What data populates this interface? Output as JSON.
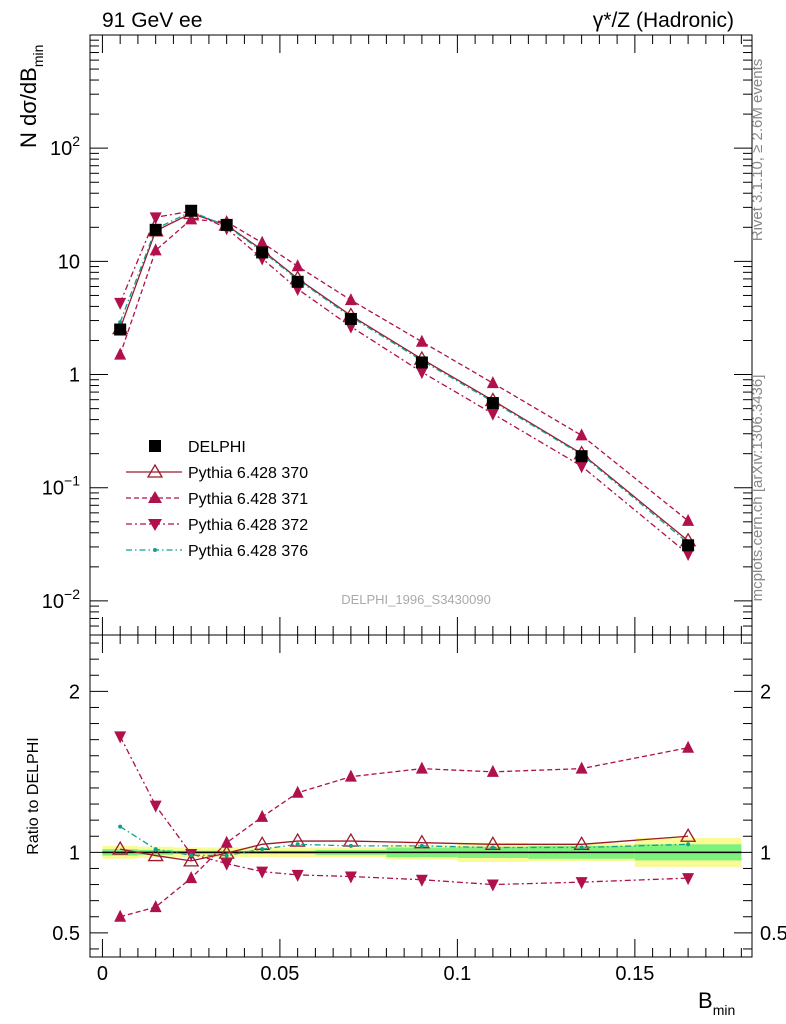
{
  "header": {
    "left": "91 GeV ee",
    "right": "γ*/Z (Hadronic)"
  },
  "side_text": {
    "rivet": "Rivet 3.1.10, ≥ 2.6M events",
    "mcplots": "mcplots.cern.ch [arXiv:1306.3436]"
  },
  "watermark": "DELPHI_1996_S3430090",
  "colors": {
    "data": "#000000",
    "p370": "#9b1b2b",
    "p371": "#b0104c",
    "p372": "#b0104c",
    "p376": "#10a090",
    "band_stat": "#7ef07e",
    "band_total": "#fafa96"
  },
  "chart_data": [
    {
      "type": "scatter",
      "panel": "main",
      "ylabel_main": "N dσ/dB",
      "ylabel_sub": "min",
      "yscale": "log",
      "ylim": [
        0.005,
        1000
      ],
      "xlim": [
        -0.0035,
        0.183
      ],
      "y_ticks": [
        {
          "value": 0.01,
          "mant": "10",
          "exp": "−2"
        },
        {
          "value": 0.1,
          "mant": "10",
          "exp": "−1"
        },
        {
          "value": 1,
          "mant": "1",
          "exp": ""
        },
        {
          "value": 10,
          "mant": "10",
          "exp": ""
        },
        {
          "value": 100,
          "mant": "10",
          "exp": "2"
        }
      ],
      "x": [
        0.005,
        0.015,
        0.025,
        0.035,
        0.045,
        0.055,
        0.07,
        0.09,
        0.11,
        0.135,
        0.165
      ],
      "series": [
        {
          "name": "DELPHI",
          "key": "data",
          "values": [
            2.5,
            19,
            28,
            21,
            12,
            6.6,
            3.1,
            1.28,
            0.56,
            0.19,
            0.031
          ]
        },
        {
          "name": "Pythia 6.428 370",
          "key": "p370",
          "values": [
            2.55,
            18.6,
            26.5,
            20.9,
            12.6,
            7.05,
            3.32,
            1.37,
            0.59,
            0.2,
            0.034
          ]
        },
        {
          "name": "Pythia 6.428 371",
          "key": "p371",
          "values": [
            1.5,
            12.5,
            23.5,
            22.3,
            14.6,
            9.05,
            4.55,
            1.95,
            0.84,
            0.29,
            0.051
          ]
        },
        {
          "name": "Pythia 6.428 372",
          "key": "p372",
          "values": [
            4.3,
            24.5,
            27.8,
            19.6,
            10.6,
            5.7,
            2.65,
            1.05,
            0.45,
            0.155,
            0.026
          ]
        },
        {
          "name": "Pythia 6.428 376",
          "key": "p376",
          "values": [
            2.9,
            19.4,
            27.5,
            20.6,
            12.3,
            6.9,
            3.23,
            1.33,
            0.575,
            0.196,
            0.0325
          ]
        }
      ]
    },
    {
      "type": "line",
      "panel": "ratio",
      "ylabel": "Ratio to DELPHI",
      "ylim": [
        0.35,
        2.35
      ],
      "xlim": [
        -0.0035,
        0.183
      ],
      "y_ticks": [
        0.5,
        1,
        2
      ],
      "y_tick_labels": [
        "0.5",
        "1",
        "2"
      ],
      "x_ticks": [
        0,
        0.05,
        0.1,
        0.15
      ],
      "x_tick_labels": [
        "0",
        "0.05",
        "0.1",
        "0.15"
      ],
      "xlabel_main": "B",
      "xlabel_sub": "min",
      "bins": [
        {
          "lo": 0.0,
          "hi": 0.01,
          "stat": [
            0.98,
            1.02
          ],
          "total": [
            0.96,
            1.04
          ]
        },
        {
          "lo": 0.01,
          "hi": 0.02,
          "stat": [
            0.985,
            1.015
          ],
          "total": [
            0.965,
            1.035
          ]
        },
        {
          "lo": 0.02,
          "hi": 0.03,
          "stat": [
            0.99,
            1.01
          ],
          "total": [
            0.97,
            1.03
          ]
        },
        {
          "lo": 0.03,
          "hi": 0.04,
          "stat": [
            0.99,
            1.01
          ],
          "total": [
            0.97,
            1.03
          ]
        },
        {
          "lo": 0.04,
          "hi": 0.05,
          "stat": [
            0.99,
            1.01
          ],
          "total": [
            0.97,
            1.03
          ]
        },
        {
          "lo": 0.05,
          "hi": 0.06,
          "stat": [
            0.99,
            1.01
          ],
          "total": [
            0.97,
            1.03
          ]
        },
        {
          "lo": 0.06,
          "hi": 0.08,
          "stat": [
            0.985,
            1.015
          ],
          "total": [
            0.97,
            1.03
          ]
        },
        {
          "lo": 0.08,
          "hi": 0.1,
          "stat": [
            0.97,
            1.03
          ],
          "total": [
            0.955,
            1.045
          ]
        },
        {
          "lo": 0.1,
          "hi": 0.12,
          "stat": [
            0.965,
            1.035
          ],
          "total": [
            0.94,
            1.06
          ]
        },
        {
          "lo": 0.12,
          "hi": 0.15,
          "stat": [
            0.96,
            1.04
          ],
          "total": [
            0.945,
            1.055
          ]
        },
        {
          "lo": 0.15,
          "hi": 0.18,
          "stat": [
            0.95,
            1.05
          ],
          "total": [
            0.91,
            1.09
          ]
        }
      ],
      "x": [
        0.005,
        0.015,
        0.025,
        0.035,
        0.045,
        0.055,
        0.07,
        0.09,
        0.11,
        0.135,
        0.165
      ],
      "series": [
        {
          "name": "Pythia 6.428 370",
          "key": "p370",
          "values": [
            1.02,
            0.98,
            0.947,
            0.995,
            1.05,
            1.07,
            1.07,
            1.06,
            1.05,
            1.05,
            1.1
          ]
        },
        {
          "name": "Pythia 6.428 371",
          "key": "p371",
          "values": [
            0.6,
            0.66,
            0.84,
            1.06,
            1.22,
            1.37,
            1.47,
            1.52,
            1.5,
            1.52,
            1.65
          ]
        },
        {
          "name": "Pythia 6.428 372",
          "key": "p372",
          "values": [
            1.72,
            1.29,
            0.99,
            0.93,
            0.88,
            0.86,
            0.85,
            0.83,
            0.8,
            0.815,
            0.84
          ]
        },
        {
          "name": "Pythia 6.428 376",
          "key": "p376",
          "values": [
            1.16,
            1.02,
            0.982,
            0.98,
            1.02,
            1.05,
            1.04,
            1.04,
            1.03,
            1.03,
            1.05
          ]
        }
      ]
    }
  ]
}
